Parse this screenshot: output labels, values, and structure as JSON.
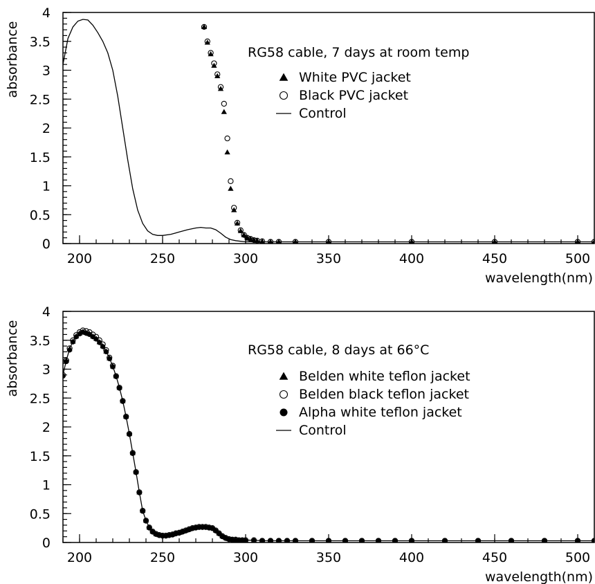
{
  "chart_data": [
    {
      "type": "scatter",
      "title": "",
      "annotation": "RG58 cable, 7 days at room temp",
      "xlabel": "wavelength(nm)",
      "ylabel": "absorbance",
      "xlim": [
        190,
        510
      ],
      "ylim": [
        0,
        4
      ],
      "xticks": [
        200,
        250,
        300,
        350,
        400,
        450,
        500
      ],
      "yticks": [
        0,
        0.5,
        1,
        1.5,
        2,
        2.5,
        3,
        3.5,
        4
      ],
      "grid": false,
      "legend_position": "upper-right",
      "legend": [
        {
          "label": "White PVC jacket",
          "marker": "triangle-filled"
        },
        {
          "label": "Black PVC jacket",
          "marker": "circle-open"
        },
        {
          "label": "Control",
          "marker": "line"
        }
      ],
      "series": [
        {
          "name": "White PVC jacket",
          "marker": "triangle-filled",
          "x": [
            275,
            277,
            279,
            281,
            283,
            285,
            287,
            289,
            291,
            293,
            295,
            297,
            299,
            301,
            303,
            305,
            307,
            310,
            315,
            320,
            330,
            350,
            400,
            450,
            500,
            510
          ],
          "y": [
            3.75,
            3.48,
            3.28,
            3.08,
            2.9,
            2.68,
            2.28,
            1.58,
            0.95,
            0.58,
            0.35,
            0.22,
            0.15,
            0.1,
            0.08,
            0.06,
            0.05,
            0.04,
            0.03,
            0.03,
            0.03,
            0.03,
            0.03,
            0.03,
            0.03,
            0.03
          ]
        },
        {
          "name": "Black PVC jacket",
          "marker": "circle-open",
          "x": [
            275,
            277,
            279,
            281,
            283,
            285,
            287,
            289,
            291,
            293,
            295,
            297,
            299,
            301,
            303,
            305,
            307,
            310,
            315,
            320,
            330,
            350,
            400,
            450,
            500,
            510
          ],
          "y": [
            3.75,
            3.5,
            3.3,
            3.12,
            2.93,
            2.71,
            2.42,
            1.82,
            1.08,
            0.62,
            0.36,
            0.23,
            0.15,
            0.1,
            0.08,
            0.06,
            0.05,
            0.04,
            0.03,
            0.03,
            0.03,
            0.03,
            0.03,
            0.03,
            0.03,
            0.03
          ]
        },
        {
          "name": "Control",
          "marker": "line",
          "x": [
            190,
            193,
            196,
            199,
            202,
            205,
            208,
            211,
            214,
            217,
            220,
            223,
            226,
            229,
            232,
            235,
            238,
            241,
            244,
            247,
            250,
            255,
            260,
            265,
            270,
            273,
            276,
            279,
            282,
            285,
            288,
            291,
            294,
            297,
            300,
            305,
            310,
            320,
            350,
            400,
            450,
            500,
            510
          ],
          "y": [
            3.1,
            3.55,
            3.75,
            3.85,
            3.88,
            3.87,
            3.78,
            3.65,
            3.5,
            3.3,
            3.0,
            2.55,
            2.0,
            1.45,
            0.95,
            0.58,
            0.35,
            0.22,
            0.16,
            0.14,
            0.14,
            0.16,
            0.2,
            0.24,
            0.27,
            0.28,
            0.27,
            0.27,
            0.24,
            0.18,
            0.11,
            0.07,
            0.05,
            0.04,
            0.03,
            0.03,
            0.03,
            0.03,
            0.03,
            0.03,
            0.03,
            0.03,
            0.03
          ]
        }
      ]
    },
    {
      "type": "scatter",
      "title": "",
      "annotation": "RG58 cable, 8 days at 66°C",
      "xlabel": "wavelength(nm)",
      "ylabel": "absorbance",
      "xlim": [
        190,
        510
      ],
      "ylim": [
        0,
        4
      ],
      "xticks": [
        200,
        250,
        300,
        350,
        400,
        450,
        500
      ],
      "yticks": [
        0,
        0.5,
        1,
        1.5,
        2,
        2.5,
        3,
        3.5,
        4
      ],
      "grid": false,
      "legend_position": "right",
      "legend": [
        {
          "label": "Belden white teflon jacket",
          "marker": "triangle-filled"
        },
        {
          "label": "Belden black teflon jacket",
          "marker": "circle-open"
        },
        {
          "label": "Alpha white teflon jacket",
          "marker": "circle-filled"
        },
        {
          "label": "Control",
          "marker": "line"
        }
      ],
      "series": [
        {
          "name": "Belden white teflon jacket",
          "marker": "triangle-filled",
          "x": [
            190,
            192,
            194,
            196,
            198,
            200,
            202,
            204,
            206,
            208,
            210,
            212,
            214,
            216,
            218,
            220,
            222,
            224,
            226,
            228,
            230,
            232,
            234,
            236,
            238,
            240,
            242,
            244,
            246,
            248,
            250,
            252,
            254,
            256,
            258,
            260,
            262,
            264,
            266,
            268,
            270,
            272,
            274,
            276,
            278,
            280,
            282,
            284,
            286,
            288,
            290,
            292,
            294,
            296,
            298,
            300,
            305,
            310,
            315,
            320,
            325,
            330,
            340,
            350,
            360,
            370,
            380,
            390,
            400,
            420,
            440,
            460,
            480,
            500,
            510
          ],
          "y": [
            2.9,
            3.15,
            3.35,
            3.48,
            3.57,
            3.62,
            3.65,
            3.63,
            3.61,
            3.57,
            3.53,
            3.47,
            3.4,
            3.31,
            3.19,
            3.05,
            2.88,
            2.68,
            2.45,
            2.18,
            1.88,
            1.55,
            1.22,
            0.87,
            0.55,
            0.38,
            0.26,
            0.19,
            0.15,
            0.13,
            0.12,
            0.12,
            0.13,
            0.14,
            0.16,
            0.17,
            0.19,
            0.21,
            0.23,
            0.25,
            0.26,
            0.27,
            0.27,
            0.27,
            0.26,
            0.25,
            0.21,
            0.16,
            0.11,
            0.08,
            0.06,
            0.05,
            0.05,
            0.04,
            0.04,
            0.04,
            0.04,
            0.03,
            0.03,
            0.03,
            0.03,
            0.03,
            0.03,
            0.03,
            0.03,
            0.03,
            0.03,
            0.03,
            0.03,
            0.03,
            0.03,
            0.03,
            0.03,
            0.03,
            0.03
          ]
        },
        {
          "name": "Belden black teflon jacket",
          "marker": "circle-open",
          "x": [
            190,
            192,
            194,
            196,
            198,
            200,
            202,
            204,
            206,
            208,
            210,
            212,
            214,
            216,
            218,
            220,
            222,
            224,
            226,
            228,
            230,
            232,
            234,
            236,
            238,
            240,
            242,
            244,
            246,
            248,
            250,
            252,
            254,
            256,
            258,
            260,
            262,
            264,
            266,
            268,
            270,
            272,
            274,
            276,
            278,
            280,
            282,
            284,
            286,
            288,
            290,
            292,
            294,
            296,
            298,
            300,
            305,
            310,
            315,
            320,
            325,
            330,
            340,
            350,
            360,
            370,
            380,
            390,
            400,
            420,
            440,
            460,
            480,
            500,
            510
          ],
          "y": [
            2.9,
            3.15,
            3.36,
            3.5,
            3.59,
            3.64,
            3.67,
            3.66,
            3.64,
            3.6,
            3.56,
            3.5,
            3.43,
            3.33,
            3.2,
            3.06,
            2.88,
            2.68,
            2.45,
            2.18,
            1.88,
            1.55,
            1.22,
            0.87,
            0.55,
            0.38,
            0.26,
            0.19,
            0.15,
            0.13,
            0.12,
            0.12,
            0.13,
            0.14,
            0.16,
            0.17,
            0.19,
            0.21,
            0.23,
            0.25,
            0.26,
            0.27,
            0.27,
            0.27,
            0.26,
            0.25,
            0.21,
            0.16,
            0.11,
            0.08,
            0.06,
            0.05,
            0.05,
            0.04,
            0.04,
            0.04,
            0.04,
            0.03,
            0.03,
            0.03,
            0.03,
            0.03,
            0.03,
            0.03,
            0.03,
            0.03,
            0.03,
            0.03,
            0.03,
            0.03,
            0.03,
            0.03,
            0.03,
            0.03,
            0.03
          ]
        },
        {
          "name": "Alpha white teflon jacket",
          "marker": "circle-filled",
          "x": [
            190,
            192,
            194,
            196,
            198,
            200,
            202,
            204,
            206,
            208,
            210,
            212,
            214,
            216,
            218,
            220,
            222,
            224,
            226,
            228,
            230,
            232,
            234,
            236,
            238,
            240,
            242,
            244,
            246,
            248,
            250,
            252,
            254,
            256,
            258,
            260,
            262,
            264,
            266,
            268,
            270,
            272,
            274,
            276,
            278,
            280,
            282,
            284,
            286,
            288,
            290,
            292,
            294,
            296,
            298,
            300,
            305,
            310,
            315,
            320,
            325,
            330,
            340,
            350,
            360,
            370,
            380,
            390,
            400,
            420,
            440,
            460,
            480,
            500,
            510
          ],
          "y": [
            2.88,
            3.13,
            3.33,
            3.47,
            3.56,
            3.61,
            3.64,
            3.62,
            3.6,
            3.56,
            3.52,
            3.46,
            3.39,
            3.3,
            3.18,
            3.04,
            2.87,
            2.67,
            2.44,
            2.17,
            1.87,
            1.54,
            1.21,
            0.86,
            0.54,
            0.37,
            0.25,
            0.18,
            0.14,
            0.12,
            0.11,
            0.11,
            0.12,
            0.13,
            0.15,
            0.16,
            0.18,
            0.2,
            0.22,
            0.24,
            0.25,
            0.26,
            0.26,
            0.26,
            0.25,
            0.24,
            0.2,
            0.15,
            0.1,
            0.07,
            0.05,
            0.04,
            0.04,
            0.03,
            0.03,
            0.03,
            0.03,
            0.03,
            0.03,
            0.03,
            0.03,
            0.03,
            0.03,
            0.03,
            0.03,
            0.03,
            0.03,
            0.03,
            0.03,
            0.03,
            0.03,
            0.03,
            0.03,
            0.03,
            0.03
          ]
        },
        {
          "name": "Control",
          "marker": "line",
          "x": [
            190,
            192,
            194,
            196,
            198,
            200,
            202,
            204,
            206,
            208,
            210,
            212,
            214,
            216,
            218,
            220,
            222,
            224,
            226,
            228,
            230,
            232,
            234,
            236,
            238,
            240,
            242,
            244,
            246,
            248,
            250,
            252,
            254,
            256,
            258,
            260,
            262,
            264,
            266,
            268,
            270,
            272,
            274,
            276,
            278,
            280,
            282,
            284,
            286,
            288,
            290,
            292,
            294,
            296,
            298,
            300,
            305,
            310,
            315,
            320,
            325,
            330,
            340,
            350,
            360,
            370,
            380,
            390,
            400,
            420,
            440,
            460,
            480,
            500,
            510
          ],
          "y": [
            2.9,
            3.15,
            3.35,
            3.48,
            3.57,
            3.62,
            3.65,
            3.63,
            3.61,
            3.57,
            3.53,
            3.47,
            3.4,
            3.31,
            3.19,
            3.05,
            2.88,
            2.68,
            2.45,
            2.18,
            1.88,
            1.55,
            1.22,
            0.87,
            0.55,
            0.38,
            0.26,
            0.19,
            0.15,
            0.13,
            0.12,
            0.12,
            0.13,
            0.14,
            0.16,
            0.17,
            0.19,
            0.21,
            0.23,
            0.25,
            0.26,
            0.27,
            0.27,
            0.27,
            0.26,
            0.25,
            0.21,
            0.16,
            0.11,
            0.08,
            0.06,
            0.05,
            0.05,
            0.04,
            0.04,
            0.04,
            0.04,
            0.03,
            0.03,
            0.03,
            0.03,
            0.03,
            0.03,
            0.03,
            0.03,
            0.03,
            0.03,
            0.03,
            0.03,
            0.03,
            0.03,
            0.03,
            0.03,
            0.03,
            0.03
          ]
        }
      ]
    }
  ]
}
